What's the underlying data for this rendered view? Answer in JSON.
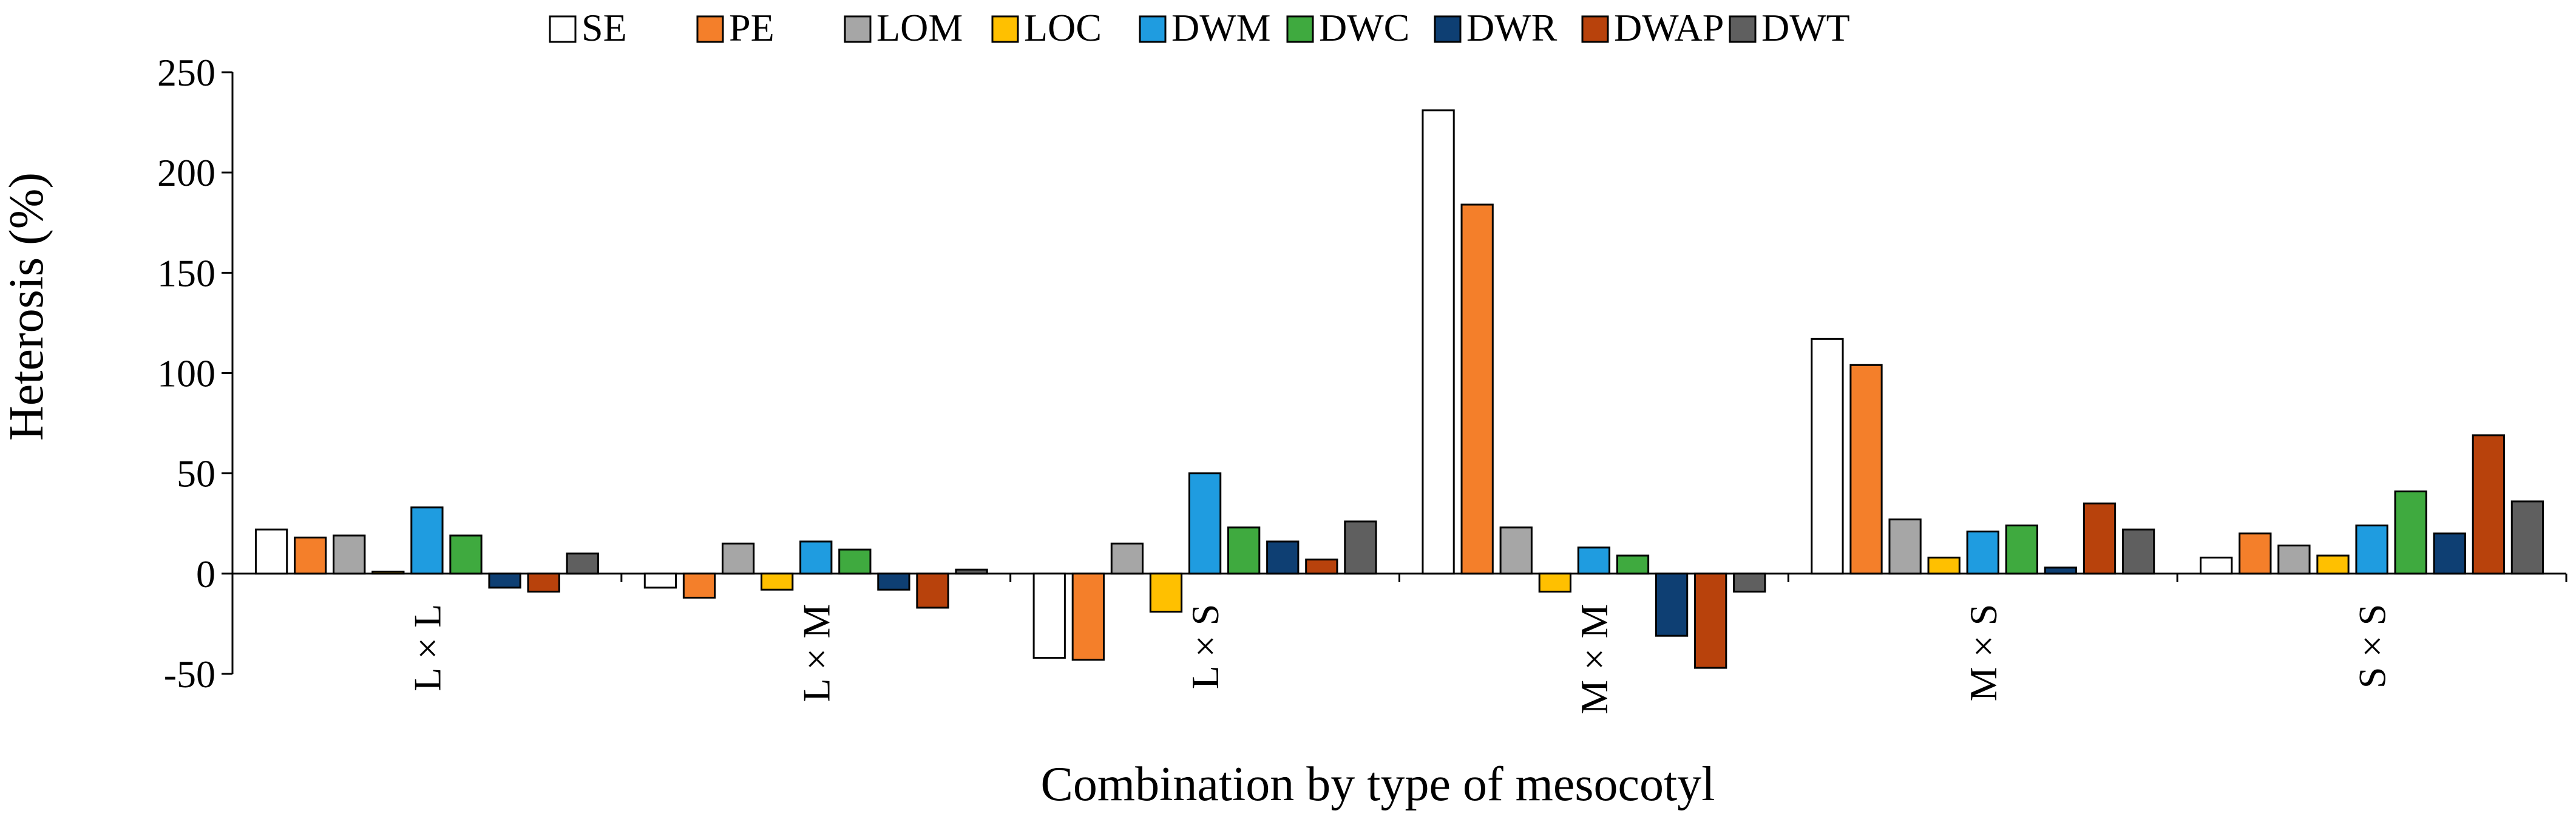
{
  "chart_data": {
    "type": "bar",
    "title": "",
    "xlabel": "Combination by type of mesocotyl",
    "ylabel": "Heterosis (%)",
    "ylim": [
      -50,
      250
    ],
    "yticks": [
      -50,
      0,
      50,
      100,
      150,
      200,
      250
    ],
    "legend_position": "top",
    "categories": [
      "L × L",
      "L × M",
      "L × S",
      "M × M",
      "M × S",
      "S × S"
    ],
    "series": [
      {
        "name": "SE",
        "color": "#ffffff",
        "values": [
          22,
          -7,
          -42,
          231,
          117,
          8
        ]
      },
      {
        "name": "PE",
        "color": "#f47f2a",
        "values": [
          18,
          -12,
          -43,
          184,
          104,
          20
        ]
      },
      {
        "name": "LOM",
        "color": "#a6a6a6",
        "values": [
          19,
          15,
          15,
          23,
          27,
          14
        ]
      },
      {
        "name": "LOC",
        "color": "#ffc000",
        "values": [
          1,
          -8,
          -19,
          -9,
          8,
          9
        ]
      },
      {
        "name": "DWM",
        "color": "#1f9ce0",
        "values": [
          33,
          16,
          50,
          13,
          21,
          24
        ]
      },
      {
        "name": "DWC",
        "color": "#3faa3f",
        "values": [
          19,
          12,
          23,
          9,
          24,
          41
        ]
      },
      {
        "name": "DWR",
        "color": "#0e3f73",
        "values": [
          -7,
          -8,
          16,
          -31,
          3,
          20
        ]
      },
      {
        "name": "DWAP",
        "color": "#b8420c",
        "values": [
          -9,
          -17,
          7,
          -47,
          35,
          69
        ]
      },
      {
        "name": "DWT",
        "color": "#5f5f5f",
        "values": [
          10,
          2,
          26,
          -9,
          22,
          36
        ]
      }
    ]
  }
}
